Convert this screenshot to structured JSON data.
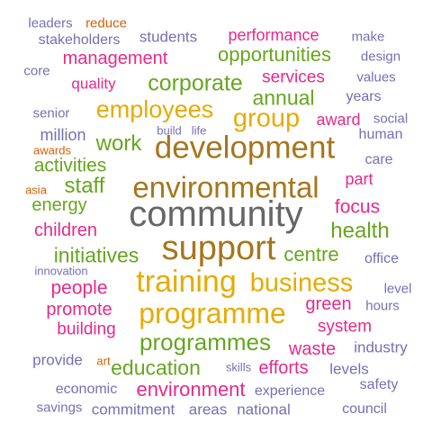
{
  "colors": {
    "pink": "#e7298a",
    "green": "#66a61e",
    "gold": "#e6ab02",
    "brown": "#a6761d",
    "slate": "#7570b3",
    "orange": "#d95f02",
    "gray": "#666666"
  },
  "words": [
    {
      "text": "leaders",
      "color": "slate"
    },
    {
      "text": "reduce",
      "color": "orange"
    },
    {
      "text": "stakeholders",
      "color": "slate"
    },
    {
      "text": "students",
      "color": "slate"
    },
    {
      "text": "performance",
      "color": "pink"
    },
    {
      "text": "make",
      "color": "slate"
    },
    {
      "text": "opportunities",
      "color": "green"
    },
    {
      "text": "design",
      "color": "slate"
    },
    {
      "text": "management",
      "color": "pink"
    },
    {
      "text": "core",
      "color": "slate"
    },
    {
      "text": "services",
      "color": "pink"
    },
    {
      "text": "values",
      "color": "slate"
    },
    {
      "text": "quality",
      "color": "pink"
    },
    {
      "text": "corporate",
      "color": "green"
    },
    {
      "text": "annual",
      "color": "green"
    },
    {
      "text": "years",
      "color": "slate"
    },
    {
      "text": "employees",
      "color": "gold"
    },
    {
      "text": "group",
      "color": "gold"
    },
    {
      "text": "senior",
      "color": "slate"
    },
    {
      "text": "award",
      "color": "pink"
    },
    {
      "text": "social",
      "color": "slate"
    },
    {
      "text": "build",
      "color": "slate"
    },
    {
      "text": "life",
      "color": "slate"
    },
    {
      "text": "human",
      "color": "slate"
    },
    {
      "text": "million",
      "color": "slate"
    },
    {
      "text": "development",
      "color": "brown"
    },
    {
      "text": "work",
      "color": "green"
    },
    {
      "text": "awards",
      "color": "orange"
    },
    {
      "text": "care",
      "color": "slate"
    },
    {
      "text": "activities",
      "color": "green"
    },
    {
      "text": "part",
      "color": "pink"
    },
    {
      "text": "environmental",
      "color": "brown"
    },
    {
      "text": "staff",
      "color": "green"
    },
    {
      "text": "asia",
      "color": "orange"
    },
    {
      "text": "energy",
      "color": "green"
    },
    {
      "text": "focus",
      "color": "pink"
    },
    {
      "text": "community",
      "color": "gray"
    },
    {
      "text": "children",
      "color": "pink"
    },
    {
      "text": "health",
      "color": "green"
    },
    {
      "text": "support",
      "color": "brown"
    },
    {
      "text": "initiatives",
      "color": "green"
    },
    {
      "text": "centre",
      "color": "green"
    },
    {
      "text": "office",
      "color": "slate"
    },
    {
      "text": "innovation",
      "color": "slate"
    },
    {
      "text": "training",
      "color": "gold"
    },
    {
      "text": "business",
      "color": "gold"
    },
    {
      "text": "people",
      "color": "pink"
    },
    {
      "text": "level",
      "color": "slate"
    },
    {
      "text": "green",
      "color": "pink"
    },
    {
      "text": "promote",
      "color": "pink"
    },
    {
      "text": "programme",
      "color": "gold"
    },
    {
      "text": "hours",
      "color": "slate"
    },
    {
      "text": "building",
      "color": "pink"
    },
    {
      "text": "system",
      "color": "pink"
    },
    {
      "text": "programmes",
      "color": "green"
    },
    {
      "text": "waste",
      "color": "pink"
    },
    {
      "text": "industry",
      "color": "slate"
    },
    {
      "text": "provide",
      "color": "slate"
    },
    {
      "text": "art",
      "color": "orange"
    },
    {
      "text": "education",
      "color": "green"
    },
    {
      "text": "skills",
      "color": "slate"
    },
    {
      "text": "efforts",
      "color": "pink"
    },
    {
      "text": "levels",
      "color": "slate"
    },
    {
      "text": "safety",
      "color": "slate"
    },
    {
      "text": "economic",
      "color": "slate"
    },
    {
      "text": "environment",
      "color": "pink"
    },
    {
      "text": "experience",
      "color": "slate"
    },
    {
      "text": "savings",
      "color": "slate"
    },
    {
      "text": "commitment",
      "color": "slate"
    },
    {
      "text": "areas",
      "color": "slate"
    },
    {
      "text": "national",
      "color": "slate"
    },
    {
      "text": "council",
      "color": "slate"
    }
  ]
}
